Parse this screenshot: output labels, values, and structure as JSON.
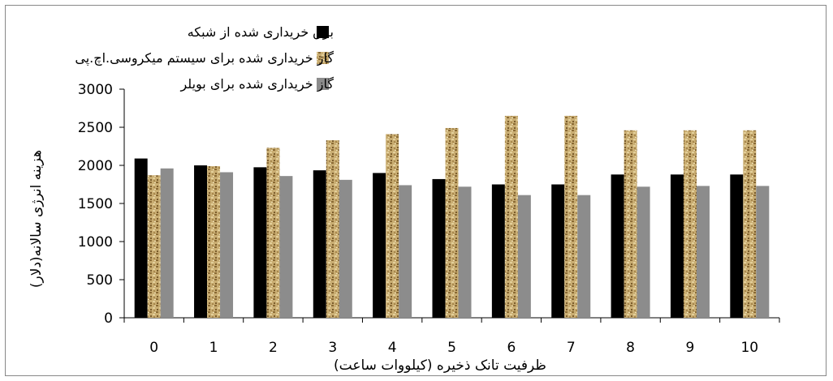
{
  "chart_data": {
    "type": "bar",
    "title": "",
    "xlabel": "ظرفیت تانک ذخیره (کیلووات ساعت)",
    "ylabel": "هزینه انرژی سالانه(دلار)",
    "categories": [
      "0",
      "1",
      "2",
      "3",
      "4",
      "5",
      "6",
      "7",
      "8",
      "9",
      "10"
    ],
    "ylim": [
      0,
      3000
    ],
    "yticks": [
      0,
      500,
      1000,
      1500,
      2000,
      2500,
      3000
    ],
    "grid": false,
    "legend_position": "top-center",
    "series": [
      {
        "name": "برق خریداری شده از شبکه",
        "color": "#000000",
        "fill": "solid",
        "values": [
          2090,
          2000,
          1975,
          1935,
          1900,
          1820,
          1750,
          1750,
          1880,
          1880,
          1880
        ]
      },
      {
        "name": "گاز خریداری شده برای سیستم میکروسی.اچ.پی",
        "color": "#b89a5c",
        "fill": "texture",
        "values": [
          1870,
          1990,
          2230,
          2330,
          2410,
          2490,
          2650,
          2650,
          2460,
          2460,
          2460
        ]
      },
      {
        "name": "گاز خریداری شده برای بویلر",
        "color": "#8c8c8c",
        "fill": "solid",
        "values": [
          1960,
          1910,
          1860,
          1810,
          1740,
          1720,
          1610,
          1610,
          1720,
          1730,
          1730
        ]
      }
    ]
  }
}
